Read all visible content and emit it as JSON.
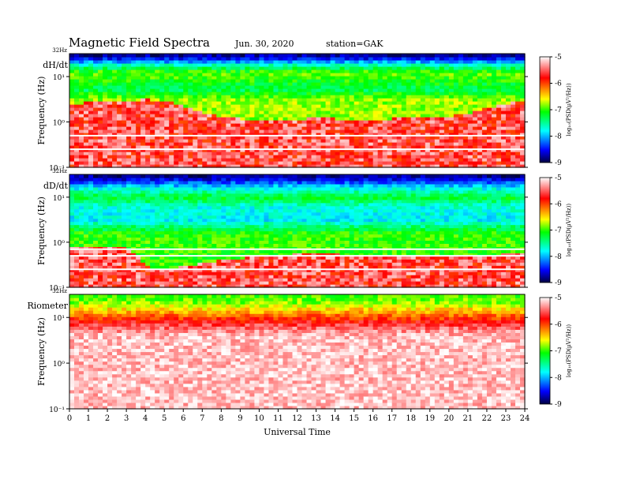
{
  "header": {
    "title": "Magnetic  Field  Spectra",
    "date": "Jun. 30, 2020",
    "station": "station=GAK"
  },
  "chart_data": [
    {
      "type": "heatmap",
      "panel_label": "dH/dt",
      "ylabel": "Frequency  (Hz)",
      "y_scale": "log",
      "ylim": [
        0.1,
        32
      ],
      "y_ticks": [
        "10⁻¹",
        "10⁰",
        "10¹"
      ],
      "y_top_label": "32Hz",
      "colorbar": {
        "label": "log₁₀(PSD(µV²/Hz))",
        "ticks": [
          "-9",
          "-8",
          "-7",
          "-6",
          "-5"
        ],
        "range": [
          -9,
          -5
        ]
      },
      "bands": [
        {
          "upper_hz_by_hour": [
            2.5,
            2.7,
            2.8,
            3.0,
            3.2,
            3.0,
            2.2,
            1.6,
            1.3,
            1.2,
            1.1,
            1.05,
            1.1,
            1.3,
            1.2,
            1.15,
            1.1,
            1.2,
            1.2,
            1.25,
            1.3,
            1.6,
            2.0,
            2.6,
            2.8
          ],
          "level": -5.6
        },
        {
          "level_by_freq": {
            "f_hz": [
              32,
              24,
              18,
              12,
              8,
              5,
              3
            ],
            "log_psd": [
              -8.9,
              -8.4,
              -7.6,
              -6.9,
              -7.1,
              -7.3,
              -6.8
            ]
          }
        }
      ],
      "lines_hz": [
        0.25,
        0.5
      ]
    },
    {
      "type": "heatmap",
      "panel_label": "dD/dt",
      "ylabel": "Frequency  (Hz)",
      "y_scale": "log",
      "ylim": [
        0.1,
        32
      ],
      "y_ticks": [
        "10⁻¹",
        "10⁰",
        "10¹"
      ],
      "y_top_label": "32Hz",
      "colorbar": {
        "label": "log₁₀(PSD(µV²/Hz))",
        "ticks": [
          "-9",
          "-8",
          "-7",
          "-6",
          "-5"
        ],
        "range": [
          -9,
          -5
        ]
      },
      "bands": [
        {
          "upper_hz_by_hour": [
            0.8,
            0.85,
            0.85,
            0.8,
            0.3,
            0.25,
            0.3,
            0.35,
            0.4,
            0.45,
            0.5,
            0.5,
            0.55,
            0.55,
            0.55,
            0.5,
            0.5,
            0.5,
            0.5,
            0.5,
            0.5,
            0.5,
            0.5,
            0.55,
            0.6
          ],
          "level": -5.6
        },
        {
          "level_by_freq": {
            "f_hz": [
              32,
              24,
              16,
              10,
              6,
              3,
              1.5
            ],
            "log_psd": [
              -8.9,
              -8.5,
              -7.8,
              -7.2,
              -7.7,
              -7.8,
              -7.0
            ]
          }
        }
      ],
      "lines_hz": [
        0.25,
        0.5,
        0.7
      ]
    },
    {
      "type": "heatmap",
      "panel_label": "Riometer",
      "ylabel": "Frequency  (Hz)",
      "y_scale": "log",
      "ylim": [
        0.1,
        32
      ],
      "y_ticks": [
        "10⁻¹",
        "10⁰",
        "10¹"
      ],
      "y_top_label": "32Hz",
      "colorbar": {
        "label": "log₁₀(PSD(µV²/Hz))",
        "ticks": [
          "-9",
          "-8",
          "-7",
          "-6",
          "-5"
        ],
        "range": [
          -9,
          -5
        ]
      },
      "bands": [
        {
          "level_by_freq": {
            "f_hz": [
              32,
              20,
              14,
              10,
              7,
              4
            ],
            "log_psd": [
              -7.0,
              -6.8,
              -6.4,
              -6.0,
              -5.6,
              -5.2
            ]
          }
        }
      ],
      "lines_hz": []
    }
  ],
  "x_axis": {
    "label": "Universal Time",
    "xlim": [
      0,
      24
    ],
    "ticks": [
      "0",
      "1",
      "2",
      "3",
      "4",
      "5",
      "6",
      "7",
      "8",
      "9",
      "10",
      "11",
      "12",
      "13",
      "14",
      "15",
      "16",
      "17",
      "18",
      "19",
      "20",
      "21",
      "22",
      "23",
      "24"
    ]
  }
}
